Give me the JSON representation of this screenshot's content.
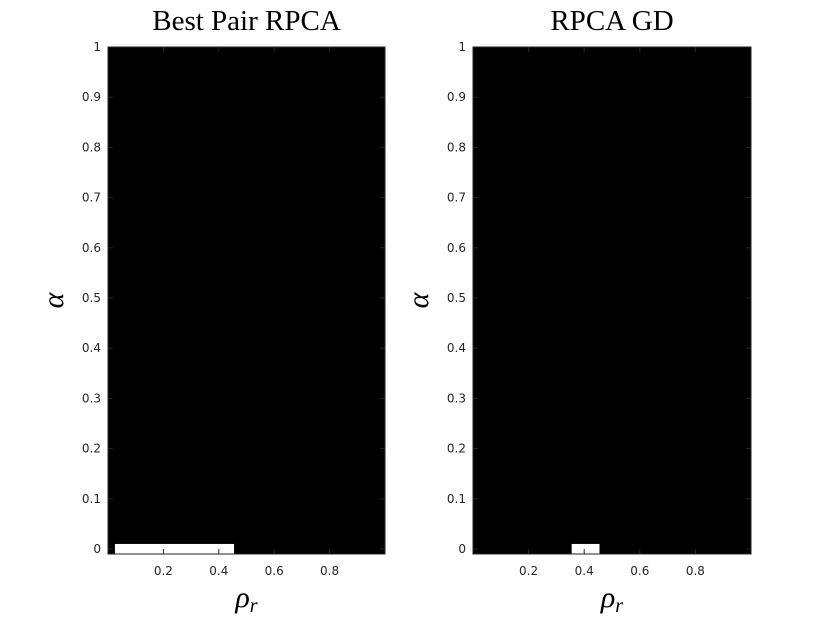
{
  "chart_data": [
    {
      "type": "heatmap",
      "title": "Best Pair RPCA",
      "xlabel": "ρ",
      "xlabel_subscript": "r",
      "ylabel": "α",
      "xlim": [
        0,
        1
      ],
      "ylim": [
        -0.01,
        1
      ],
      "xticks": [
        0.2,
        0.4,
        0.6,
        0.8
      ],
      "xtick_labels": [
        "0.2",
        "0.4",
        "0.6",
        "0.8"
      ],
      "yticks": [
        0,
        0.1,
        0.2,
        0.3,
        0.4,
        0.5,
        0.6,
        0.7,
        0.8,
        0.9,
        1
      ],
      "ytick_labels": [
        "0",
        "0.1",
        "0.2",
        "0.3",
        "0.4",
        "0.5",
        "0.6",
        "0.7",
        "0.8",
        "0.9",
        "1"
      ],
      "background_value": 0,
      "colormap": {
        "0": "#000000",
        "1": "#ffffff"
      },
      "cells": [
        {
          "x0": 0.025,
          "x1": 0.455,
          "y0": -0.01,
          "y1": 0.01,
          "value": 1
        }
      ]
    },
    {
      "type": "heatmap",
      "title": "RPCA GD",
      "xlabel": "ρ",
      "xlabel_subscript": "r",
      "ylabel": "α",
      "xlim": [
        0,
        1
      ],
      "ylim": [
        -0.01,
        1
      ],
      "xticks": [
        0.2,
        0.4,
        0.6,
        0.8
      ],
      "xtick_labels": [
        "0.2",
        "0.4",
        "0.6",
        "0.8"
      ],
      "yticks": [
        0,
        0.1,
        0.2,
        0.3,
        0.4,
        0.5,
        0.6,
        0.7,
        0.8,
        0.9,
        1
      ],
      "ytick_labels": [
        "0",
        "0.1",
        "0.2",
        "0.3",
        "0.4",
        "0.5",
        "0.6",
        "0.7",
        "0.8",
        "0.9",
        "1"
      ],
      "background_value": 0,
      "colormap": {
        "0": "#000000",
        "1": "#ffffff"
      },
      "cells": [
        {
          "x0": 0.355,
          "x1": 0.455,
          "y0": -0.01,
          "y1": 0.01,
          "value": 1
        }
      ]
    }
  ]
}
